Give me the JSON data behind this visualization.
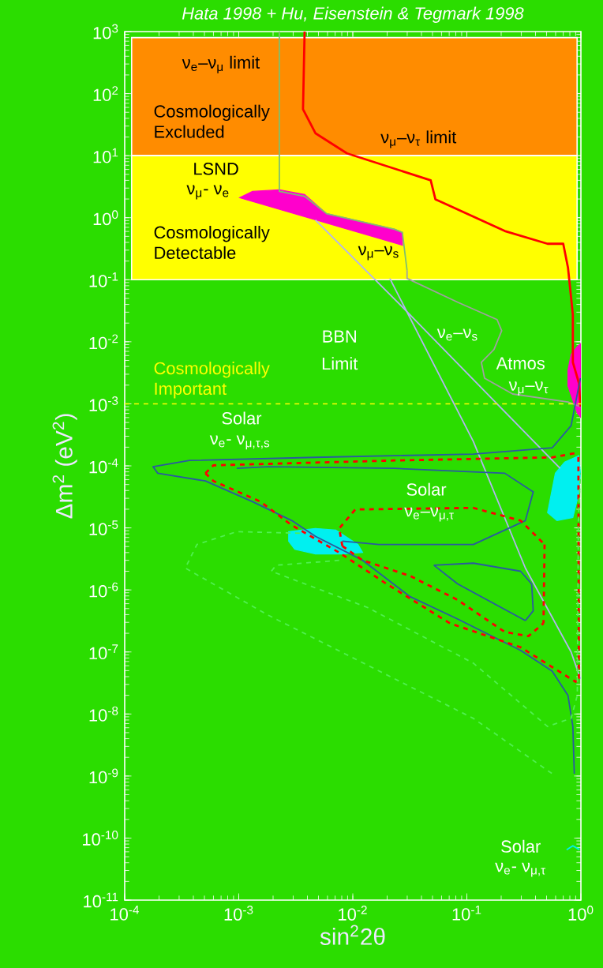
{
  "chart_data": {
    "type": "line",
    "title": "Hata 1998    +    Hu,  Eisenstein & Tegmark 1998",
    "xlabel": "sin$^{2}$2θ",
    "ylabel": "Δm$^{2}$ (eV$^{2}$)",
    "log": "xy",
    "xlim": [
      0.0001,
      1
    ],
    "ylim": [
      1e-11,
      1000
    ],
    "xticks": [
      {
        "value": 0.0001,
        "label": "10$^{-4}$"
      },
      {
        "value": 0.001,
        "label": "10$^{-3}$"
      },
      {
        "value": 0.01,
        "label": "10$^{-2}$"
      },
      {
        "value": 0.1,
        "label": "10$^{-1}$"
      },
      {
        "value": 1,
        "label": "10$^{0}$"
      }
    ],
    "yticks": [
      {
        "value": 1e-11,
        "label": "10$^{-11}$"
      },
      {
        "value": 1e-10,
        "label": "10$^{-10}$"
      },
      {
        "value": 1e-09,
        "label": "10$^{-9}$"
      },
      {
        "value": 1e-08,
        "label": "10$^{-8}$"
      },
      {
        "value": 1e-07,
        "label": "10$^{-7}$"
      },
      {
        "value": 1e-06,
        "label": "10$^{-6}$"
      },
      {
        "value": 1e-05,
        "label": "10$^{-5}$"
      },
      {
        "value": 0.0001,
        "label": "10$^{-4}$"
      },
      {
        "value": 0.001,
        "label": "10$^{-3}$"
      },
      {
        "value": 0.01,
        "label": "10$^{-2}$"
      },
      {
        "value": 0.1,
        "label": "10$^{-1}$"
      },
      {
        "value": 1,
        "label": "10$^{0}$"
      },
      {
        "value": 10,
        "label": "10$^{1}$"
      },
      {
        "value": 100,
        "label": "10$^{2}$"
      },
      {
        "value": 1000,
        "label": "10$^{3}$"
      }
    ],
    "bands": [
      {
        "axis": "y",
        "from": 10,
        "to": 800,
        "label": "Cosmologically Excluded",
        "color": "#ff8c00"
      },
      {
        "axis": "y",
        "from": 0.1,
        "to": 10,
        "label": "Cosmologically Detectable",
        "color": "#ffff00"
      }
    ],
    "ref_lines": [
      {
        "axis": "y",
        "value": 0.001,
        "label": "Cosmologically Important",
        "color": "#ffff00",
        "line_style": "dashed"
      }
    ],
    "series": [
      {
        "type": "area",
        "color": "#ff00cc",
        "x": [
          0.00102,
          0.00132,
          0.00227,
          0.00378,
          0.0059,
          0.0232,
          0.0272,
          0.0272
        ],
        "values": [
          2.1,
          2.65,
          2.81,
          2.36,
          1.16,
          0.65,
          0.58,
          0.36
        ]
      },
      {
        "type": "area",
        "color": "#ff00cc",
        "x": [
          0.82,
          0.93,
          1,
          1,
          0.93,
          0.77,
          0.77
        ],
        "values": [
          0.00625,
          0.0084,
          0.0094,
          0.0006,
          0.00071,
          0.00193,
          0.00348
        ]
      },
      {
        "type": "area",
        "color": "#00f0f0",
        "x": [
          0.00274,
          0.0047,
          0.0071,
          0.0111,
          0.0122,
          0.0081,
          0.0047,
          0.0031,
          0.00274
        ],
        "values": [
          8.7e-06,
          9.8e-06,
          9.2e-06,
          5.4e-06,
          4e-06,
          3.8e-06,
          3.8e-06,
          4.5e-06,
          6.1e-06
        ]
      },
      {
        "type": "area",
        "color": "#00f0f0",
        "x": [
          0.51,
          0.597,
          0.72,
          0.96,
          0.99,
          0.96,
          0.85,
          0.617
        ],
        "values": [
          1.76e-05,
          7.6e-05,
          0.000115,
          0.000146,
          7.6e-05,
          3.6e-05,
          1.47e-05,
          1.31e-05
        ]
      },
      {
        "color": "#00f0f0",
        "x": [
          0.75,
          0.85,
          0.97
        ],
        "values": [
          6.5e-11,
          7.5e-11,
          6.5e-11
        ]
      },
      {
        "color": "#7fbf6f",
        "x": [
          0.00227,
          0.00227,
          0.00378,
          0.0059,
          0.0232,
          0.0272,
          0.0299
        ],
        "values": [
          1000,
          2.65,
          2.22,
          1.16,
          0.65,
          0.58,
          0.141
        ]
      },
      {
        "color": "#a0a0a0",
        "x": [
          0.0299,
          0.0299,
          0.083,
          0.184,
          0.202,
          0.173,
          0.134,
          0.143,
          0.252,
          0.77,
          0.99
        ],
        "values": [
          0.141,
          0.105,
          0.0434,
          0.0228,
          0.0151,
          0.0075,
          0.00466,
          0.00259,
          0.00144,
          0.00107,
          0.0009
        ]
      },
      {
        "color": "#ff0000",
        "x": [
          0.00378,
          0.00366,
          0.0047,
          0.0089,
          0.0482,
          0.053,
          0.215,
          0.51,
          0.7,
          0.77,
          0.85,
          0.85,
          0.96,
          0.99
        ],
        "values": [
          1000,
          56,
          23,
          10.9,
          4.0,
          1.98,
          0.61,
          0.38,
          0.38,
          0.158,
          0.0272,
          0.00466,
          0.00217,
          0.0009
        ]
      },
      {
        "color": "#b4b4f0",
        "x": [
          0.0047,
          0.0299,
          0.657
        ],
        "values": [
          0.92,
          0.0305,
          9.1e-05
        ]
      },
      {
        "color": "#b4b4f0",
        "x": [
          0.0211,
          0.114,
          0.326,
          0.82,
          0.99
        ],
        "values": [
          0.105,
          0.000247,
          2.25e-06,
          1e-07,
          3.7e-08
        ]
      },
      {
        "color": "#2a5aa0",
        "x": [
          0.99,
          0.82,
          0.56,
          0.114,
          0.0047,
          0.00037,
          0.000177,
          0.000195,
          0.00051,
          0.00132,
          0.00292,
          0.0047,
          0.0122,
          0.0318,
          0.083,
          0.296,
          0.56,
          0.77,
          0.85,
          0.875
        ],
        "values": [
          0.00259,
          0.000445,
          0.000195,
          0.000155,
          0.000137,
          0.000122,
          9.7e-05,
          7.6e-05,
          5.7e-05,
          2.65e-05,
          1.31e-05,
          7.3e-06,
          3e-06,
          7.8e-07,
          3.4e-07,
          1.06e-07,
          4.9e-08,
          2e-08,
          6.3e-09,
          1.09e-09
        ]
      },
      {
        "color": "#2a5aa0",
        "x": [
          0.00096,
          0.00182,
          0.0232,
          0.215,
          0.382,
          0.326,
          0.114,
          0.0169,
          0.0081
        ],
        "values": [
          9.1e-05,
          9.7e-05,
          9.1e-05,
          7.6e-05,
          3.8e-05,
          1.31e-05,
          5.4e-06,
          5.4e-06,
          6.1e-06
        ]
      },
      {
        "color": "#2a5aa0",
        "x": [
          0.0514,
          0.114,
          0.296,
          0.37,
          0.382,
          0.326
        ],
        "values": [
          2.5e-06,
          2.7e-06,
          2e-06,
          1.25e-06,
          4.6e-07,
          3.2e-07
        ]
      },
      {
        "color": "#2a5aa0",
        "x": [
          0.0514,
          0.083,
          0.326
        ],
        "values": [
          2.5e-06,
          1.25e-06,
          3.2e-07
        ]
      },
      {
        "color": "#ff0000",
        "line_style": "dashed",
        "x": [
          0.00051,
          0.0006,
          0.0232,
          0.56,
          0.96
        ],
        "values": [
          7.6e-05,
          0.000102,
          0.000122,
          0.000137,
          0.000164
        ]
      },
      {
        "color": "#ff0000",
        "line_style": "dashed",
        "x": [
          0.00051,
          0.0006,
          0.00155,
          0.00292,
          0.0076,
          0.0198,
          0.071,
          0.296,
          0.9,
          0.96
        ],
        "values": [
          7.6e-05,
          5.7e-05,
          2.65e-05,
          1.1e-05,
          4e-06,
          1.25e-06,
          2.9e-07,
          1.19e-07,
          3.3e-08,
          3.7e-08
        ]
      },
      {
        "color": "#ff0000",
        "line_style": "dashed",
        "x": [
          0.96,
          0.955,
          0.95
        ],
        "values": [
          3.7e-08,
          2.25e-06,
          0.000164
        ]
      },
      {
        "color": "#ff0000",
        "line_style": "dashed",
        "x": [
          0.0081,
          0.0076,
          0.0105,
          0.114,
          0.296,
          0.48
        ],
        "values": [
          5.1e-06,
          9.8e-06,
          1.98e-05,
          2.1e-05,
          1.31e-05,
          5.4e-06
        ]
      },
      {
        "color": "#ff0000",
        "line_style": "dashed",
        "x": [
          0.48,
          0.475,
          0.47
        ],
        "values": [
          5.4e-06,
          1.25e-06,
          2.9e-07
        ]
      },
      {
        "color": "#ff0000",
        "line_style": "dashed",
        "x": [
          0.0081,
          0.0122,
          0.0318,
          0.083,
          0.215,
          0.347,
          0.47
        ],
        "values": [
          5.1e-06,
          3e-06,
          1.68e-06,
          6.9e-07,
          2.1e-07,
          1.8e-07,
          2.9e-07
        ]
      },
      {
        "color": "#50f050",
        "line_style": "dashed",
        "x": [
          0.00343,
          0.00096,
          0.00043,
          0.00034,
          0.00182,
          0.0232,
          0.114,
          0.56
        ],
        "values": [
          8.2e-06,
          8.7e-06,
          5.4e-06,
          2.25e-06,
          3.9e-07,
          3.7e-08,
          8.5e-09,
          1.09e-09
        ]
      },
      {
        "color": "#50f050",
        "line_style": "dashed",
        "x": [
          0.0076,
          0.00213,
          0.00193,
          0.0135,
          0.114,
          0.51,
          0.82,
          0.93,
          0.95,
          0.99
        ],
        "values": [
          3e-06,
          2.5e-06,
          2e-06,
          5.2e-07,
          6.6e-08,
          6.3e-09,
          8.5e-09,
          2e-08,
          1.31e-05,
          7.6e-05
        ]
      }
    ],
    "annotations": [
      "ν$_{e}$–ν$_{μ}$ limit",
      "ν$_{μ}$–ν$_{τ}$ limit",
      "LSND",
      "ν$_{μ}$- ν$_{e}$",
      "ν$_{μ}$–ν$_{s}$",
      "BBN",
      "Limit",
      "ν$_{e}$–ν$_{s}$",
      "Atmos",
      "ν$_{μ}$–ν$_{τ}$",
      "Solar",
      "ν$_{e}$- ν$_{μ,τ,s}$",
      "Solar",
      "ν$_{e}$–ν$_{μ,τ}$",
      "Solar",
      "ν$_{e}$- ν$_{μ,τ}$"
    ]
  }
}
